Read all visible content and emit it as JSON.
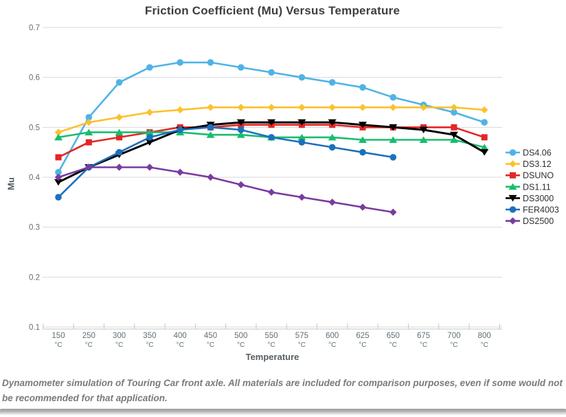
{
  "chart_data": {
    "type": "line",
    "title": "Friction Coefficient (Mu) Versus Temperature",
    "xlabel": "Temperature",
    "ylabel": "Mu",
    "x_unit": "°C",
    "ylim": [
      0.1,
      0.7
    ],
    "yticks": [
      0.7,
      0.6,
      0.5,
      0.4,
      0.3,
      0.2,
      0.1
    ],
    "grid": "horizontal",
    "legend_position": "right",
    "categories": [
      "150",
      "250",
      "300",
      "350",
      "400",
      "450",
      "500",
      "550",
      "575",
      "600",
      "625",
      "650",
      "675",
      "700",
      "800"
    ],
    "series": [
      {
        "name": "DS4.06",
        "color": "#4fb3e6",
        "marker": "circle",
        "values": [
          0.41,
          0.52,
          0.59,
          0.62,
          0.63,
          0.63,
          0.62,
          0.61,
          0.6,
          0.59,
          0.58,
          0.56,
          0.545,
          0.53,
          0.51
        ]
      },
      {
        "name": "DS3.12",
        "color": "#fcc12c",
        "marker": "diamond",
        "values": [
          0.49,
          0.51,
          0.52,
          0.53,
          0.535,
          0.54,
          0.54,
          0.54,
          0.54,
          0.54,
          0.54,
          0.54,
          0.54,
          0.54,
          0.535
        ]
      },
      {
        "name": "DSUNO",
        "color": "#e32726",
        "marker": "square",
        "values": [
          0.44,
          0.47,
          0.48,
          0.49,
          0.5,
          0.5,
          0.505,
          0.505,
          0.505,
          0.505,
          0.5,
          0.5,
          0.5,
          0.5,
          0.48
        ]
      },
      {
        "name": "DS1.11",
        "color": "#17bd6d",
        "marker": "triangle-up",
        "values": [
          0.48,
          0.49,
          0.49,
          0.49,
          0.49,
          0.485,
          0.485,
          0.48,
          0.48,
          0.48,
          0.475,
          0.475,
          0.475,
          0.475,
          0.46
        ]
      },
      {
        "name": "DS3000",
        "color": "#000000",
        "marker": "triangle-down",
        "values": [
          0.39,
          0.42,
          0.445,
          0.47,
          0.495,
          0.505,
          0.51,
          0.51,
          0.51,
          0.51,
          0.505,
          0.5,
          0.495,
          0.485,
          0.45
        ]
      },
      {
        "name": "FER4003",
        "color": "#1b70bc",
        "marker": "circle",
        "values": [
          0.36,
          0.42,
          0.45,
          0.48,
          0.495,
          0.5,
          0.495,
          0.48,
          0.47,
          0.46,
          0.45,
          0.44
        ]
      },
      {
        "name": "DS2500",
        "color": "#7a3ba0",
        "marker": "diamond",
        "values": [
          0.4,
          0.42,
          0.42,
          0.42,
          0.41,
          0.4,
          0.385,
          0.37,
          0.36,
          0.35,
          0.34,
          0.33
        ]
      }
    ],
    "footnote": "Dynamometer simulation of Touring Car front axle. All materials are included for comparison purposes, even if some would not be recommended for that application."
  },
  "colors": {
    "title": "#3e3e3e",
    "axis_labels": "#5e6e76",
    "axis_line": "#c6c6c6",
    "gridline": "#dadada",
    "legend_text": "#303030",
    "footnote_text": "#7a7a7a"
  }
}
